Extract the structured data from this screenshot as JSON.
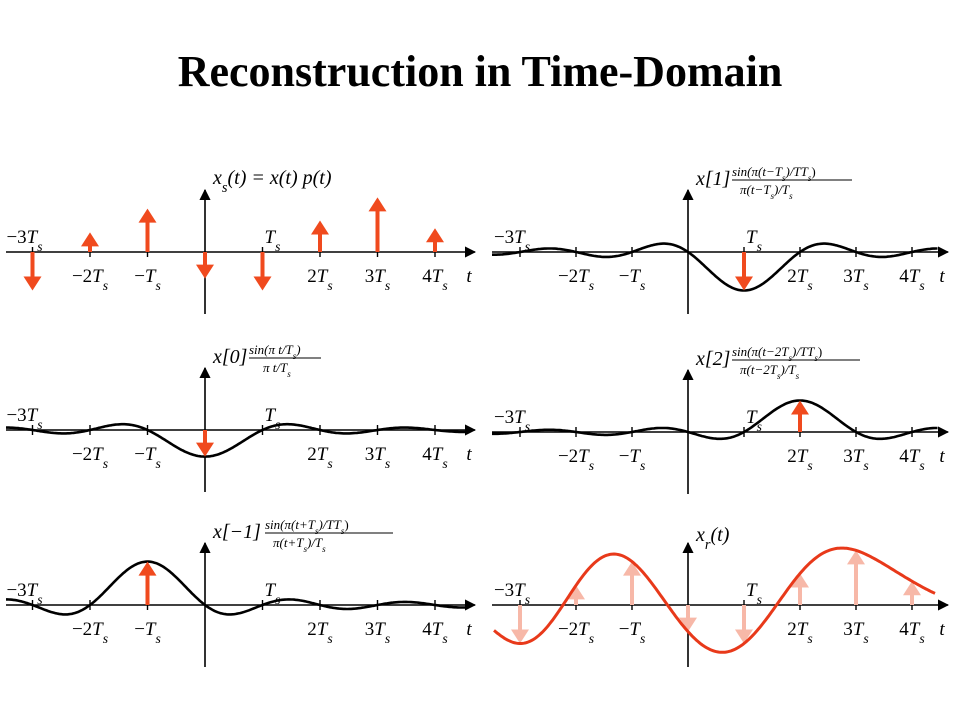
{
  "title": "Reconstruction in Time-Domain",
  "colors": {
    "stem": "#f04a1e",
    "curve": "#000000",
    "reconstructed": "#e8391a",
    "faded_stem": "#f7b8a8",
    "axis": "#000000"
  },
  "tick_labels": [
    {
      "k": -3,
      "coef": "−3",
      "side": "top"
    },
    {
      "k": -2,
      "coef": "−2",
      "side": "bottom"
    },
    {
      "k": -1,
      "coef": "−",
      "side": "bottom"
    },
    {
      "k": 1,
      "coef": "",
      "side": "top"
    },
    {
      "k": 2,
      "coef": "2",
      "side": "bottom"
    },
    {
      "k": 3,
      "coef": "3",
      "side": "bottom"
    },
    {
      "k": 4,
      "coef": "4",
      "side": "bottom"
    }
  ],
  "axis_label": "t",
  "samples": [
    {
      "n": -3,
      "value": -0.55
    },
    {
      "n": -2,
      "value": 0.28
    },
    {
      "n": -1,
      "value": 0.62
    },
    {
      "n": 0,
      "value": -0.38
    },
    {
      "n": 1,
      "value": -0.55
    },
    {
      "n": 2,
      "value": 0.45
    },
    {
      "n": 3,
      "value": 0.78
    },
    {
      "n": 4,
      "value": 0.34
    }
  ],
  "panels": [
    {
      "id": "sampled",
      "type": "stems",
      "label_main": "x",
      "label_sub": "s",
      "label_rest": "(t) = x(t) p(t)"
    },
    {
      "id": "term-0",
      "type": "sinc",
      "shift": 0,
      "label_coef": "x[0]",
      "frac_num": "sin(π t/T",
      "frac_num_end": ")",
      "frac_den": "π t/T"
    },
    {
      "id": "term-minus1",
      "type": "sinc",
      "shift": -1,
      "label_coef": "x[−1]",
      "frac_num": "sin(π(t+T",
      "frac_num_end": ")/T",
      "frac_den": "π(t+T",
      "frac_den_end": ")/T"
    },
    {
      "id": "term-1",
      "type": "sinc",
      "shift": 1,
      "label_coef": "x[1]",
      "frac_num": "sin(π(t−T",
      "frac_num_end": ")/T",
      "frac_den": "π(t−T",
      "frac_den_end": ")/T"
    },
    {
      "id": "term-2",
      "type": "sinc",
      "shift": 2,
      "label_coef": "x[2]",
      "frac_num": "sin(π(t−2T",
      "frac_num_end": ")/T",
      "frac_den": "π(t−2T",
      "frac_den_end": ")/T"
    },
    {
      "id": "reconstructed",
      "type": "sum",
      "label_main": "x",
      "label_sub": "r",
      "label_rest": "(t)"
    }
  ]
}
